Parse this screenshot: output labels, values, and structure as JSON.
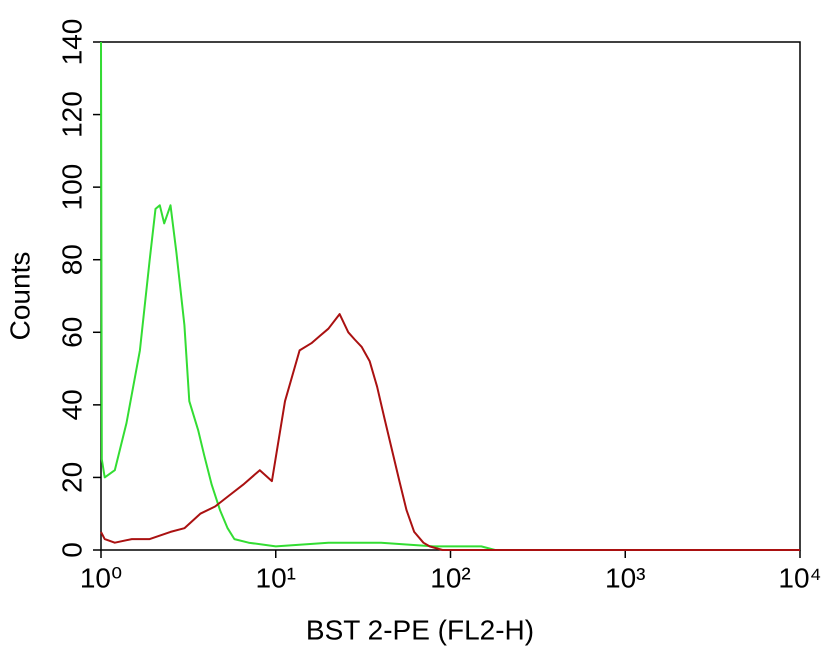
{
  "chart_data": {
    "type": "line",
    "x_label": "BST 2-PE  (FL2-H)",
    "y_label": "Counts",
    "xscale": "log",
    "xlim": [
      1,
      10000
    ],
    "xticks": [
      {
        "value": 1,
        "label": "10⁰"
      },
      {
        "value": 10,
        "label": "10¹"
      },
      {
        "value": 100,
        "label": "10²"
      },
      {
        "value": 1000,
        "label": "10³"
      },
      {
        "value": 10000,
        "label": "10⁴"
      }
    ],
    "ylim": [
      0,
      140
    ],
    "yticks": [
      0,
      20,
      40,
      60,
      80,
      100,
      120,
      140
    ],
    "series": [
      {
        "color": "#33dd33",
        "x": [
          1.0,
          1.01,
          1.05,
          1.2,
          1.4,
          1.67,
          1.9,
          2.05,
          2.17,
          2.3,
          2.5,
          2.7,
          3.0,
          3.2,
          3.6,
          3.9,
          4.3,
          4.8,
          5.3,
          5.8,
          7,
          10,
          20,
          40,
          80,
          150,
          180
        ],
        "values": [
          140,
          25,
          20,
          22,
          35,
          55,
          80,
          94,
          95,
          90,
          95,
          82,
          62,
          41,
          33,
          26,
          18,
          11,
          6,
          3,
          2,
          1,
          2,
          2,
          1,
          1,
          0
        ]
      },
      {
        "color": "#aa1111",
        "x": [
          1.0,
          1.05,
          1.2,
          1.5,
          1.9,
          2.5,
          3.0,
          3.7,
          4.5,
          5.4,
          6.5,
          8.1,
          9.5,
          11.3,
          13.7,
          16,
          17.9,
          20,
          23.2,
          26,
          28.3,
          31,
          34.5,
          38,
          42,
          46,
          51,
          56,
          62,
          70,
          76,
          90,
          98,
          200,
          1000,
          10000
        ],
        "values": [
          5,
          3,
          2,
          3,
          3,
          5,
          6,
          10,
          12,
          15,
          18,
          22,
          19,
          41,
          55,
          57,
          59,
          61,
          65,
          60,
          58,
          56,
          52,
          45,
          36,
          28,
          19,
          11,
          5,
          2,
          1,
          0,
          0,
          0,
          0,
          0
        ]
      }
    ]
  }
}
